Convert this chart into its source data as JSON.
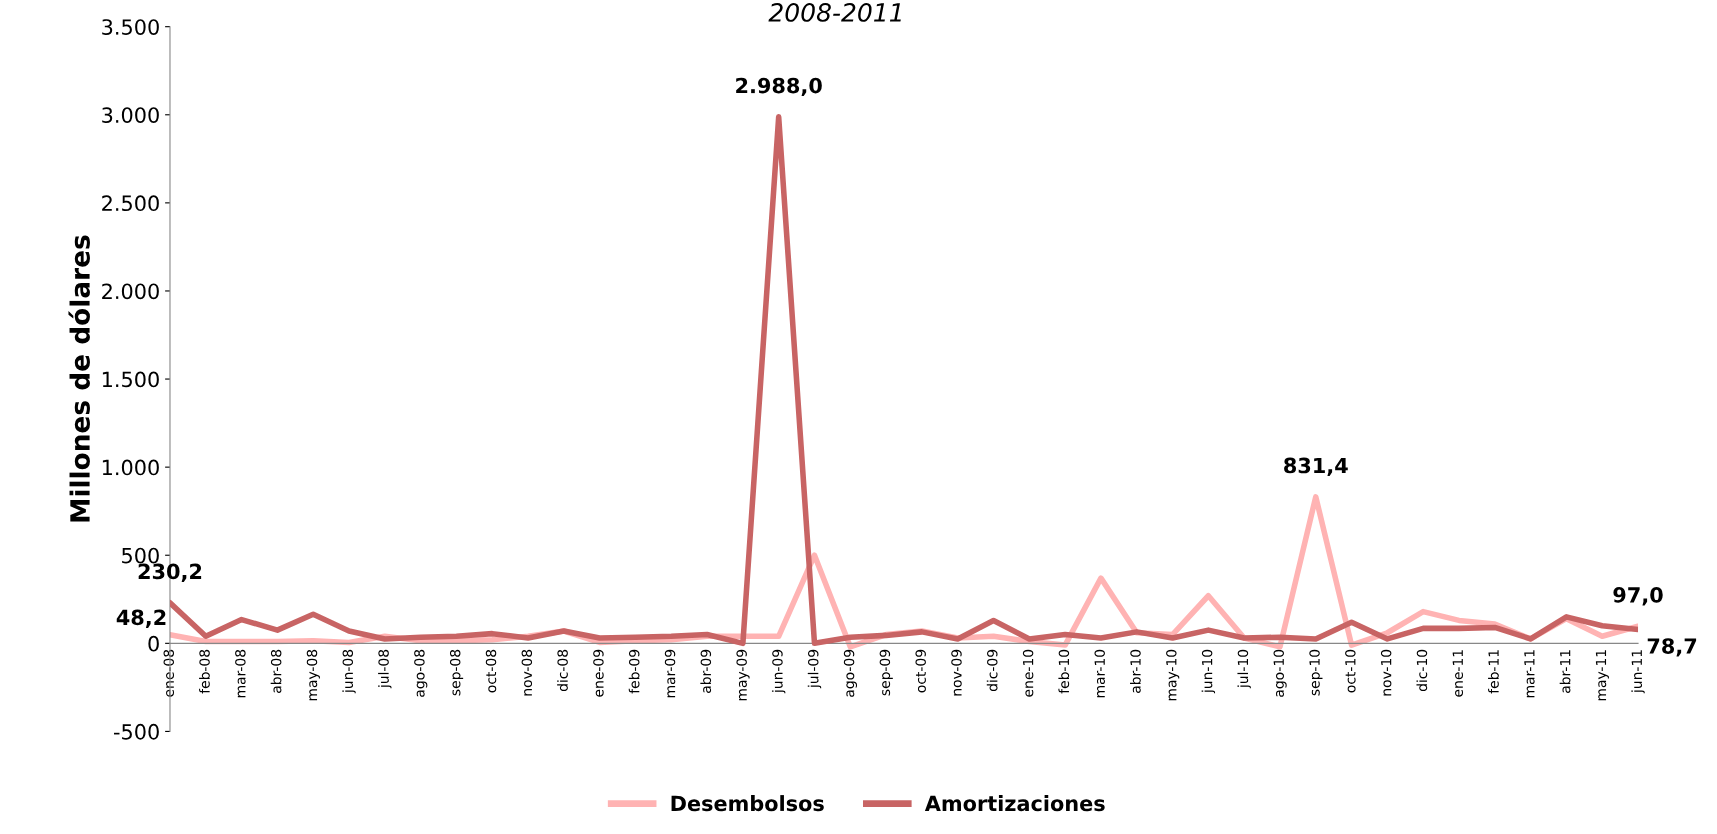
{
  "chart_data": {
    "type": "line",
    "title": "2008-2011",
    "ylabel": "Millones de dólares",
    "categories": [
      "ene-08",
      "feb-08",
      "mar-08",
      "abr-08",
      "may-08",
      "jun-08",
      "jul-08",
      "ago-08",
      "sep-08",
      "oct-08",
      "nov-08",
      "dic-08",
      "ene-09",
      "feb-09",
      "mar-09",
      "abr-09",
      "may-09",
      "jun-09",
      "jul-09",
      "ago-09",
      "sep-09",
      "oct-09",
      "nov-09",
      "dic-09",
      "ene-10",
      "feb-10",
      "mar-10",
      "abr-10",
      "may-10",
      "jun-10",
      "jul-10",
      "ago-10",
      "sep-10",
      "oct-10",
      "nov-10",
      "dic-10",
      "ene-11",
      "feb-11",
      "mar-11",
      "abr-11",
      "may-11",
      "jun-11"
    ],
    "series": [
      {
        "name": "Desembolsos",
        "color": "#ffb3b3",
        "values": [
          48.2,
          10,
          10,
          10,
          15,
          5,
          40,
          15,
          15,
          20,
          40,
          70,
          5,
          15,
          20,
          40,
          40,
          40,
          500,
          -20,
          50,
          70,
          30,
          40,
          10,
          -10,
          370,
          60,
          50,
          270,
          30,
          -20,
          831.4,
          -10,
          60,
          180,
          130,
          110,
          25,
          140,
          40,
          97.0
        ],
        "value_labels": [
          "48,2",
          null,
          null,
          null,
          null,
          null,
          null,
          null,
          null,
          null,
          null,
          null,
          null,
          null,
          null,
          null,
          null,
          null,
          null,
          null,
          null,
          null,
          null,
          null,
          null,
          null,
          null,
          null,
          null,
          null,
          null,
          null,
          "831,4",
          null,
          null,
          null,
          null,
          null,
          null,
          null,
          null,
          "97,0"
        ]
      },
      {
        "name": "Amortizaciones",
        "color": "#c86464",
        "values": [
          230.2,
          40,
          135,
          75,
          165,
          70,
          25,
          35,
          40,
          55,
          30,
          70,
          30,
          35,
          40,
          50,
          0,
          2988.0,
          0,
          35,
          45,
          65,
          25,
          130,
          25,
          50,
          30,
          65,
          30,
          75,
          30,
          35,
          25,
          120,
          25,
          85,
          85,
          90,
          25,
          150,
          100,
          78.7
        ],
        "value_labels": [
          "230,2",
          null,
          null,
          null,
          null,
          null,
          null,
          null,
          null,
          null,
          null,
          null,
          null,
          null,
          null,
          null,
          null,
          "2.988,0",
          null,
          null,
          null,
          null,
          null,
          null,
          null,
          null,
          null,
          null,
          null,
          null,
          null,
          null,
          null,
          null,
          null,
          null,
          null,
          null,
          null,
          null,
          null,
          "78,7"
        ]
      }
    ],
    "ylim": [
      -500,
      3500
    ],
    "yticks": [
      {
        "value": -500,
        "label": "-500"
      },
      0,
      500,
      {
        "value": 1000,
        "label": "1.000"
      },
      {
        "value": 1500,
        "label": "1.500"
      },
      {
        "value": 2000,
        "label": "2.000"
      },
      {
        "value": 2500,
        "label": "2.500"
      },
      {
        "value": 3000,
        "label": "3.000"
      },
      {
        "value": 3500,
        "label": "3.500"
      }
    ],
    "grid": false,
    "legend": "bottom",
    "marker": "none",
    "line_style": "solid"
  }
}
